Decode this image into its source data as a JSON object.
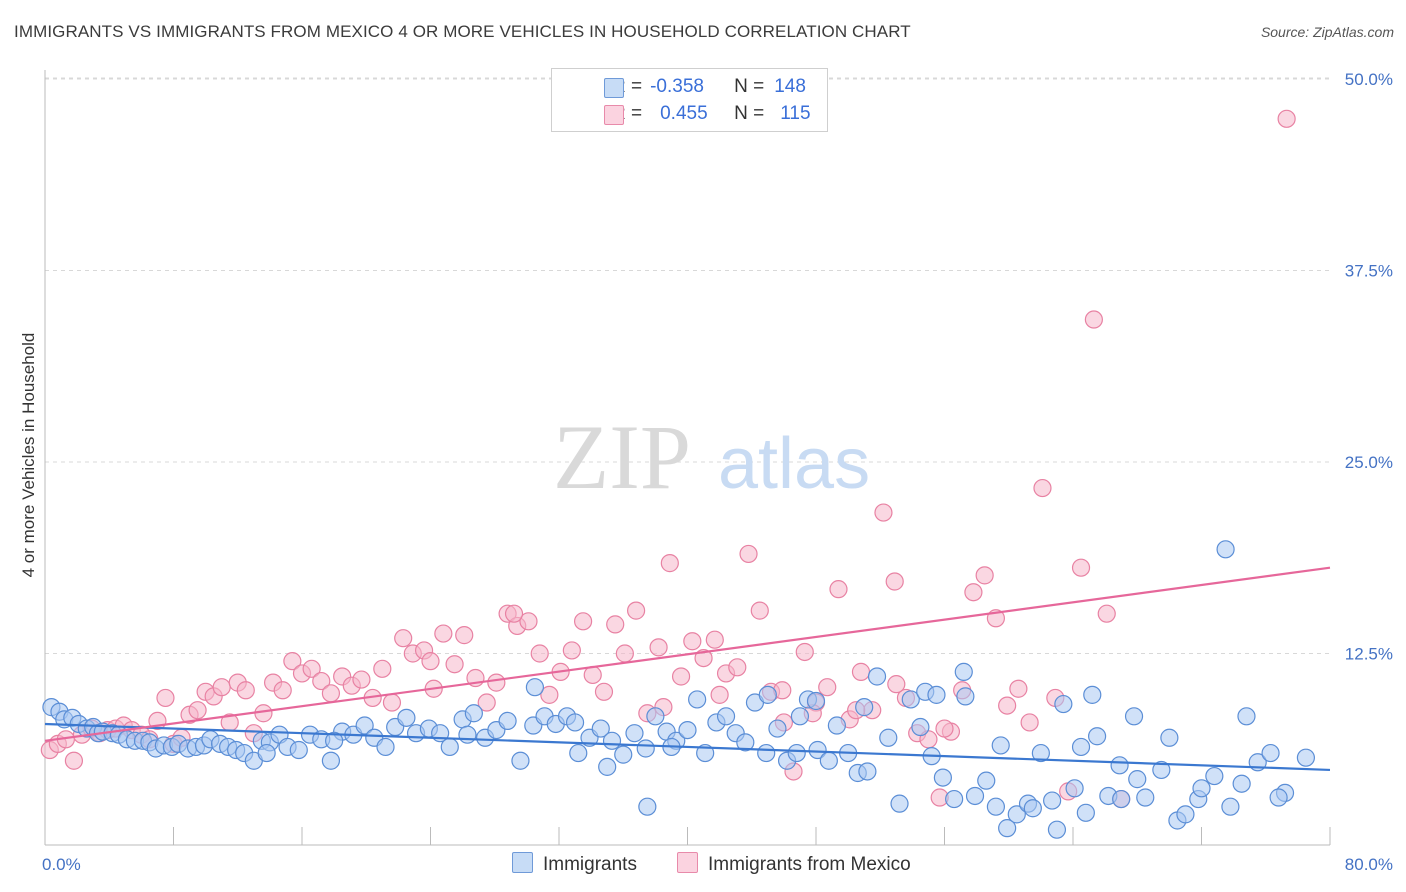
{
  "title": "IMMIGRANTS VS IMMIGRANTS FROM MEXICO 4 OR MORE VEHICLES IN HOUSEHOLD CORRELATION CHART",
  "source": "Source: ZipAtlas.com",
  "watermark": {
    "zip": "ZIP",
    "atlas": "atlas"
  },
  "legend": {
    "rows": [
      {
        "r_label": "R =",
        "r_value": "-0.358",
        "n_label": "N =",
        "n_value": "148",
        "color": "#a9c8f2"
      },
      {
        "r_label": "R =",
        "r_value": "0.455",
        "n_label": "N =",
        "n_value": "115",
        "color": "#f6b6cb"
      }
    ]
  },
  "bottom_legend": {
    "series1": "Immigrants",
    "series2": "Immigrants from Mexico"
  },
  "colors": {
    "blue_fill": "#a9c8f2",
    "blue_stroke": "#5b8ed6",
    "blue_line": "#3b78d0",
    "pink_fill": "#f6b6cb",
    "pink_stroke": "#e882a3",
    "pink_line": "#e6679a",
    "tick": "#4472c4"
  },
  "chart_data": {
    "type": "scatter",
    "title": "IMMIGRANTS VS IMMIGRANTS FROM MEXICO 4 OR MORE VEHICLES IN HOUSEHOLD CORRELATION CHART",
    "xlabel": "",
    "ylabel": "4 or more Vehicles in Household",
    "xlim": [
      0,
      80
    ],
    "ylim": [
      0,
      51
    ],
    "x_tick_labels": [
      "0.0%",
      "80.0%"
    ],
    "y_ticks": [
      12.5,
      25.0,
      37.5,
      50.0
    ],
    "y_tick_labels": [
      "12.5%",
      "25.0%",
      "37.5%",
      "50.0%"
    ],
    "grid": true,
    "legend_position": "top-center",
    "series": [
      {
        "name": "Immigrants",
        "r": -0.358,
        "n": 148,
        "trend": {
          "x": [
            0,
            80
          ],
          "y": [
            7.9,
            4.9
          ]
        },
        "points": [
          [
            0.4,
            9.0
          ],
          [
            0.9,
            8.7
          ],
          [
            1.2,
            8.2
          ],
          [
            1.7,
            8.3
          ],
          [
            2.1,
            7.9
          ],
          [
            2.6,
            7.6
          ],
          [
            3.0,
            7.7
          ],
          [
            3.3,
            7.3
          ],
          [
            3.6,
            7.4
          ],
          [
            4.2,
            7.3
          ],
          [
            4.6,
            7.2
          ],
          [
            5.1,
            6.9
          ],
          [
            5.6,
            6.8
          ],
          [
            6.1,
            6.8
          ],
          [
            6.5,
            6.7
          ],
          [
            6.9,
            6.3
          ],
          [
            7.4,
            6.5
          ],
          [
            7.9,
            6.4
          ],
          [
            8.3,
            6.6
          ],
          [
            8.9,
            6.3
          ],
          [
            9.4,
            6.4
          ],
          [
            9.9,
            6.5
          ],
          [
            10.3,
            6.9
          ],
          [
            10.9,
            6.6
          ],
          [
            11.4,
            6.4
          ],
          [
            11.9,
            6.2
          ],
          [
            12.4,
            6.0
          ],
          [
            13.0,
            5.5
          ],
          [
            13.5,
            6.8
          ],
          [
            14.0,
            6.7
          ],
          [
            14.6,
            7.2
          ],
          [
            15.1,
            6.4
          ],
          [
            15.8,
            6.2
          ],
          [
            16.5,
            7.2
          ],
          [
            17.2,
            6.9
          ],
          [
            17.8,
            5.5
          ],
          [
            18.5,
            7.4
          ],
          [
            19.2,
            7.2
          ],
          [
            19.9,
            7.8
          ],
          [
            20.5,
            7.0
          ],
          [
            21.2,
            6.4
          ],
          [
            21.8,
            7.7
          ],
          [
            22.5,
            8.3
          ],
          [
            23.1,
            7.3
          ],
          [
            23.9,
            7.6
          ],
          [
            24.6,
            7.3
          ],
          [
            25.2,
            6.4
          ],
          [
            26.0,
            8.2
          ],
          [
            26.7,
            8.6
          ],
          [
            27.4,
            7.0
          ],
          [
            28.1,
            7.5
          ],
          [
            28.8,
            8.1
          ],
          [
            29.6,
            5.5
          ],
          [
            30.4,
            7.8
          ],
          [
            31.1,
            8.4
          ],
          [
            31.8,
            7.9
          ],
          [
            32.5,
            8.4
          ],
          [
            33.2,
            6.0
          ],
          [
            33.9,
            7.0
          ],
          [
            34.6,
            7.6
          ],
          [
            35.3,
            6.8
          ],
          [
            36.0,
            5.9
          ],
          [
            36.7,
            7.3
          ],
          [
            37.4,
            6.3
          ],
          [
            38.0,
            8.4
          ],
          [
            38.7,
            7.4
          ],
          [
            39.3,
            6.8
          ],
          [
            40.0,
            7.5
          ],
          [
            40.6,
            9.5
          ],
          [
            41.1,
            6.0
          ],
          [
            41.8,
            8.0
          ],
          [
            42.4,
            8.4
          ],
          [
            43.0,
            7.3
          ],
          [
            43.6,
            6.7
          ],
          [
            44.2,
            9.3
          ],
          [
            44.9,
            6.0
          ],
          [
            45.6,
            7.6
          ],
          [
            46.2,
            5.5
          ],
          [
            46.8,
            6.0
          ],
          [
            47.5,
            9.5
          ],
          [
            48.1,
            6.2
          ],
          [
            48.8,
            5.5
          ],
          [
            49.3,
            7.8
          ],
          [
            50.0,
            6.0
          ],
          [
            50.6,
            4.7
          ],
          [
            51.2,
            4.8
          ],
          [
            51.8,
            11.0
          ],
          [
            52.5,
            7.0
          ],
          [
            53.2,
            2.7
          ],
          [
            53.9,
            9.5
          ],
          [
            54.5,
            7.7
          ],
          [
            55.2,
            5.8
          ],
          [
            55.9,
            4.4
          ],
          [
            56.6,
            3.0
          ],
          [
            57.3,
            9.7
          ],
          [
            57.9,
            3.2
          ],
          [
            58.6,
            4.2
          ],
          [
            59.2,
            2.5
          ],
          [
            59.9,
            1.1
          ],
          [
            60.5,
            2.0
          ],
          [
            61.2,
            2.7
          ],
          [
            62.0,
            6.0
          ],
          [
            62.7,
            2.9
          ],
          [
            63.4,
            9.2
          ],
          [
            64.1,
            3.7
          ],
          [
            64.8,
            2.1
          ],
          [
            65.5,
            7.1
          ],
          [
            66.2,
            3.2
          ],
          [
            66.9,
            5.2
          ],
          [
            67.8,
            8.4
          ],
          [
            68.5,
            3.1
          ],
          [
            69.5,
            4.9
          ],
          [
            70.5,
            1.6
          ],
          [
            71.8,
            3.0
          ],
          [
            72.8,
            4.5
          ],
          [
            73.8,
            2.5
          ],
          [
            74.5,
            4.0
          ],
          [
            75.5,
            5.4
          ],
          [
            76.3,
            6.0
          ],
          [
            77.2,
            3.4
          ],
          [
            78.5,
            5.7
          ],
          [
            73.5,
            19.3
          ],
          [
            37.5,
            2.5
          ],
          [
            30.5,
            10.3
          ],
          [
            45.0,
            9.8
          ],
          [
            57.2,
            11.3
          ],
          [
            33.0,
            8.0
          ],
          [
            47.0,
            8.4
          ],
          [
            48.0,
            9.4
          ],
          [
            51.0,
            9.0
          ],
          [
            39.0,
            6.4
          ],
          [
            35.0,
            5.1
          ],
          [
            59.5,
            6.5
          ],
          [
            61.5,
            2.4
          ],
          [
            63.0,
            1.0
          ],
          [
            64.5,
            6.4
          ],
          [
            65.2,
            9.8
          ],
          [
            67.0,
            3.0
          ],
          [
            68.0,
            4.3
          ],
          [
            70.0,
            7.0
          ],
          [
            71.0,
            2.0
          ],
          [
            72.0,
            3.7
          ],
          [
            74.8,
            8.4
          ],
          [
            76.8,
            3.1
          ],
          [
            54.8,
            10.0
          ],
          [
            55.5,
            9.8
          ],
          [
            13.8,
            6.0
          ],
          [
            18.0,
            6.8
          ],
          [
            26.3,
            7.2
          ]
        ]
      },
      {
        "name": "Immigrants from Mexico",
        "r": 0.455,
        "n": 115,
        "trend": {
          "x": [
            0,
            80
          ],
          "y": [
            6.8,
            18.1
          ]
        },
        "points": [
          [
            0.3,
            6.2
          ],
          [
            0.8,
            6.6
          ],
          [
            1.3,
            6.9
          ],
          [
            1.8,
            5.5
          ],
          [
            2.3,
            7.2
          ],
          [
            2.9,
            7.6
          ],
          [
            3.4,
            7.3
          ],
          [
            3.9,
            7.5
          ],
          [
            4.4,
            7.6
          ],
          [
            4.9,
            7.8
          ],
          [
            5.4,
            7.5
          ],
          [
            6.0,
            7.2
          ],
          [
            6.5,
            6.9
          ],
          [
            7.0,
            8.1
          ],
          [
            7.5,
            9.6
          ],
          [
            8.0,
            6.6
          ],
          [
            8.5,
            7.0
          ],
          [
            9.0,
            8.5
          ],
          [
            9.5,
            8.8
          ],
          [
            10.0,
            10.0
          ],
          [
            10.5,
            9.7
          ],
          [
            11.0,
            10.3
          ],
          [
            11.5,
            8.0
          ],
          [
            12.0,
            10.6
          ],
          [
            12.5,
            10.1
          ],
          [
            13.0,
            7.3
          ],
          [
            13.6,
            8.6
          ],
          [
            14.2,
            10.6
          ],
          [
            14.8,
            10.1
          ],
          [
            15.4,
            12.0
          ],
          [
            16.0,
            11.2
          ],
          [
            16.6,
            11.5
          ],
          [
            17.2,
            10.7
          ],
          [
            17.8,
            9.9
          ],
          [
            18.5,
            11.0
          ],
          [
            19.1,
            10.4
          ],
          [
            19.7,
            10.8
          ],
          [
            20.4,
            9.6
          ],
          [
            21.0,
            11.5
          ],
          [
            21.6,
            9.3
          ],
          [
            22.3,
            13.5
          ],
          [
            22.9,
            12.5
          ],
          [
            23.6,
            12.7
          ],
          [
            24.2,
            10.2
          ],
          [
            24.8,
            13.8
          ],
          [
            25.5,
            11.8
          ],
          [
            26.1,
            13.7
          ],
          [
            26.8,
            10.9
          ],
          [
            27.5,
            9.3
          ],
          [
            28.1,
            10.6
          ],
          [
            28.8,
            15.1
          ],
          [
            29.4,
            14.3
          ],
          [
            30.1,
            14.6
          ],
          [
            30.8,
            12.5
          ],
          [
            31.4,
            9.8
          ],
          [
            32.1,
            11.3
          ],
          [
            32.8,
            12.7
          ],
          [
            33.5,
            14.6
          ],
          [
            34.1,
            11.1
          ],
          [
            34.8,
            10.0
          ],
          [
            35.5,
            14.4
          ],
          [
            36.1,
            12.5
          ],
          [
            36.8,
            15.3
          ],
          [
            37.5,
            8.6
          ],
          [
            38.2,
            12.9
          ],
          [
            38.9,
            18.4
          ],
          [
            39.6,
            11.0
          ],
          [
            40.3,
            13.3
          ],
          [
            41.0,
            12.2
          ],
          [
            41.7,
            13.4
          ],
          [
            42.4,
            11.2
          ],
          [
            43.1,
            11.6
          ],
          [
            43.8,
            19.0
          ],
          [
            44.5,
            15.3
          ],
          [
            45.2,
            10.0
          ],
          [
            45.9,
            10.1
          ],
          [
            46.6,
            4.8
          ],
          [
            47.3,
            12.6
          ],
          [
            48.0,
            9.3
          ],
          [
            48.7,
            10.3
          ],
          [
            49.4,
            16.7
          ],
          [
            50.1,
            8.2
          ],
          [
            50.8,
            11.3
          ],
          [
            51.5,
            8.8
          ],
          [
            52.2,
            21.7
          ],
          [
            52.9,
            17.2
          ],
          [
            53.6,
            9.6
          ],
          [
            54.3,
            7.3
          ],
          [
            55.0,
            6.9
          ],
          [
            55.7,
            3.1
          ],
          [
            56.4,
            7.4
          ],
          [
            57.1,
            10.1
          ],
          [
            57.8,
            16.5
          ],
          [
            58.5,
            17.6
          ],
          [
            59.2,
            14.8
          ],
          [
            59.9,
            9.1
          ],
          [
            60.6,
            10.2
          ],
          [
            61.3,
            8.0
          ],
          [
            62.1,
            23.3
          ],
          [
            62.9,
            9.6
          ],
          [
            63.7,
            3.5
          ],
          [
            64.5,
            18.1
          ],
          [
            65.3,
            34.3
          ],
          [
            66.1,
            15.1
          ],
          [
            67.0,
            3.0
          ],
          [
            77.3,
            47.4
          ],
          [
            29.2,
            15.1
          ],
          [
            24.0,
            12.0
          ],
          [
            42.0,
            9.8
          ],
          [
            50.5,
            8.8
          ],
          [
            53.0,
            10.5
          ],
          [
            46.0,
            8.0
          ],
          [
            38.5,
            9.0
          ],
          [
            47.8,
            8.6
          ],
          [
            56.0,
            7.6
          ]
        ]
      }
    ]
  }
}
